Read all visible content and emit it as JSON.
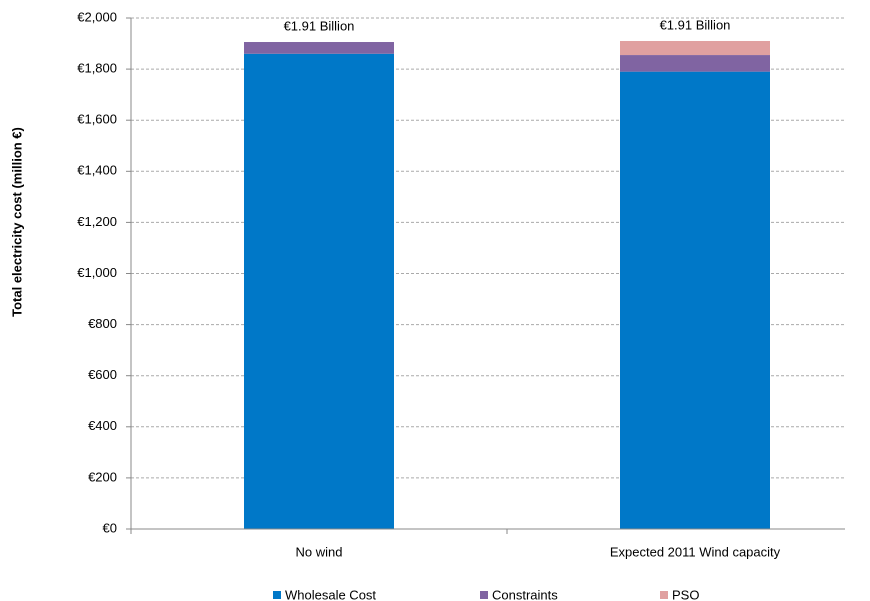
{
  "chart_data": {
    "type": "stacked_bar",
    "y_label": "Total electricity cost (million €)",
    "categories": [
      "No wind",
      "Expected 2011 Wind capacity"
    ],
    "series": [
      {
        "name": "Wholesale Cost",
        "color": "#0078c8",
        "values": [
          1860,
          1790
        ]
      },
      {
        "name": "Constraints",
        "color": "#8064a2",
        "values": [
          46,
          65
        ]
      },
      {
        "name": "PSO",
        "color": "#e0a0a0",
        "values": [
          0,
          55
        ]
      }
    ],
    "annotations": [
      "€1.91 Billion",
      "€1.91 Billion"
    ],
    "ylim": [
      0,
      2000
    ],
    "yticks": [
      {
        "value": 0,
        "label": "€0"
      },
      {
        "value": 200,
        "label": "€200"
      },
      {
        "value": 400,
        "label": "€400"
      },
      {
        "value": 600,
        "label": "€600"
      },
      {
        "value": 800,
        "label": "€800"
      },
      {
        "value": 1000,
        "label": "€1,000"
      },
      {
        "value": 1200,
        "label": "€1,200"
      },
      {
        "value": 1400,
        "label": "€1,400"
      },
      {
        "value": 1600,
        "label": "€1,600"
      },
      {
        "value": 1800,
        "label": "€1,800"
      },
      {
        "value": 2000,
        "label": "€2,000"
      }
    ],
    "grid": true,
    "legend": "bottom"
  }
}
